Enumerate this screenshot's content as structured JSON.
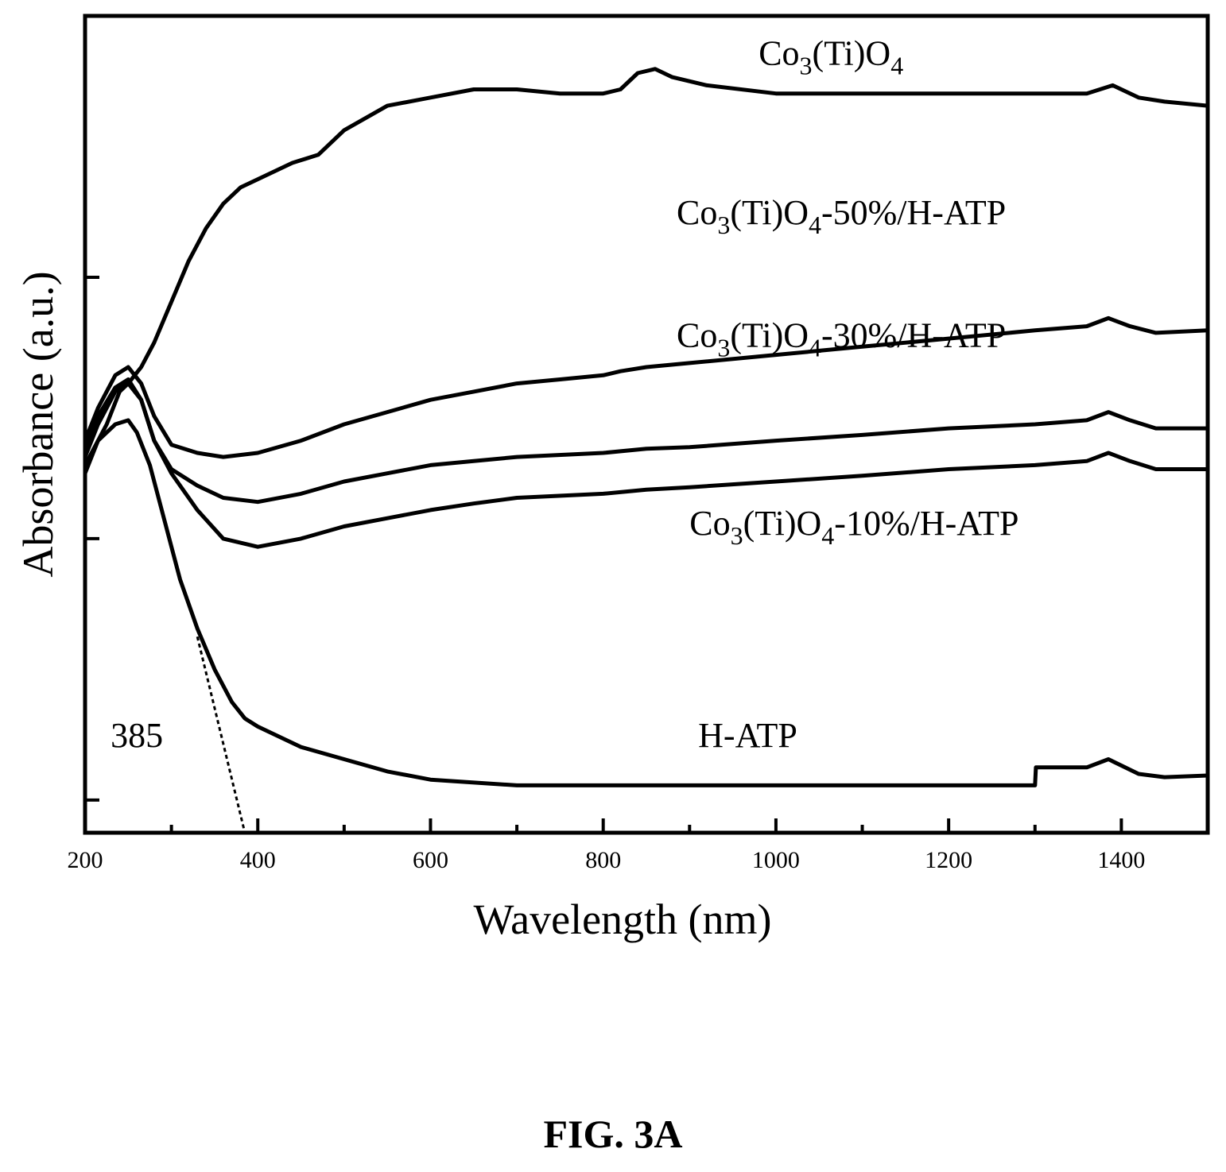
{
  "chart_data": {
    "type": "line",
    "title": "",
    "xlabel": "Wavelength (nm)",
    "ylabel": "Absorbance (a.u.)",
    "xlim": [
      200,
      1500
    ],
    "ylim": [
      0,
      1
    ],
    "x_ticks": [
      200,
      400,
      600,
      800,
      1000,
      1200,
      1400
    ],
    "y_ticks_labeled": false,
    "grid": false,
    "legend": "labels placed next to each curve",
    "series": [
      {
        "label_parts": [
          {
            "t": "Co"
          },
          {
            "t": "3",
            "sub": true
          },
          {
            "t": "(Ti)O"
          },
          {
            "t": "4",
            "sub": true
          }
        ],
        "label_at": [
          980,
          0.94
        ],
        "points": [
          [
            200,
            0.45
          ],
          [
            210,
            0.47
          ],
          [
            225,
            0.5
          ],
          [
            240,
            0.54
          ],
          [
            250,
            0.55
          ],
          [
            265,
            0.57
          ],
          [
            280,
            0.6
          ],
          [
            300,
            0.65
          ],
          [
            320,
            0.7
          ],
          [
            340,
            0.74
          ],
          [
            360,
            0.77
          ],
          [
            380,
            0.79
          ],
          [
            400,
            0.8
          ],
          [
            440,
            0.82
          ],
          [
            470,
            0.83
          ],
          [
            500,
            0.86
          ],
          [
            550,
            0.89
          ],
          [
            600,
            0.9
          ],
          [
            650,
            0.91
          ],
          [
            700,
            0.91
          ],
          [
            750,
            0.905
          ],
          [
            800,
            0.905
          ],
          [
            820,
            0.91
          ],
          [
            840,
            0.93
          ],
          [
            860,
            0.935
          ],
          [
            880,
            0.925
          ],
          [
            920,
            0.915
          ],
          [
            1000,
            0.905
          ],
          [
            1100,
            0.905
          ],
          [
            1200,
            0.905
          ],
          [
            1300,
            0.905
          ],
          [
            1360,
            0.905
          ],
          [
            1390,
            0.915
          ],
          [
            1420,
            0.9
          ],
          [
            1450,
            0.895
          ],
          [
            1500,
            0.89
          ]
        ]
      },
      {
        "label_parts": [
          {
            "t": "Co"
          },
          {
            "t": "3",
            "sub": true
          },
          {
            "t": "(Ti)O"
          },
          {
            "t": "4",
            "sub": true
          },
          {
            "t": "-50%/H-ATP"
          }
        ],
        "label_at": [
          885,
          0.745
        ],
        "points": [
          [
            200,
            0.48
          ],
          [
            215,
            0.52
          ],
          [
            235,
            0.56
          ],
          [
            250,
            0.57
          ],
          [
            265,
            0.55
          ],
          [
            280,
            0.51
          ],
          [
            300,
            0.475
          ],
          [
            330,
            0.465
          ],
          [
            360,
            0.46
          ],
          [
            400,
            0.465
          ],
          [
            450,
            0.48
          ],
          [
            500,
            0.5
          ],
          [
            550,
            0.515
          ],
          [
            600,
            0.53
          ],
          [
            650,
            0.54
          ],
          [
            700,
            0.55
          ],
          [
            750,
            0.555
          ],
          [
            800,
            0.56
          ],
          [
            820,
            0.565
          ],
          [
            850,
            0.57
          ],
          [
            900,
            0.575
          ],
          [
            1000,
            0.585
          ],
          [
            1100,
            0.595
          ],
          [
            1200,
            0.605
          ],
          [
            1300,
            0.615
          ],
          [
            1360,
            0.62
          ],
          [
            1385,
            0.63
          ],
          [
            1410,
            0.62
          ],
          [
            1440,
            0.612
          ],
          [
            1500,
            0.615
          ]
        ]
      },
      {
        "label_parts": [
          {
            "t": "Co"
          },
          {
            "t": "3",
            "sub": true
          },
          {
            "t": "(Ti)O"
          },
          {
            "t": "4",
            "sub": true
          },
          {
            "t": "-30%/H-ATP"
          }
        ],
        "label_at": [
          885,
          0.595
        ],
        "points": [
          [
            200,
            0.46
          ],
          [
            215,
            0.5
          ],
          [
            235,
            0.54
          ],
          [
            250,
            0.55
          ],
          [
            265,
            0.53
          ],
          [
            280,
            0.48
          ],
          [
            300,
            0.445
          ],
          [
            330,
            0.425
          ],
          [
            360,
            0.41
          ],
          [
            400,
            0.405
          ],
          [
            450,
            0.415
          ],
          [
            500,
            0.43
          ],
          [
            550,
            0.44
          ],
          [
            600,
            0.45
          ],
          [
            650,
            0.455
          ],
          [
            700,
            0.46
          ],
          [
            800,
            0.465
          ],
          [
            850,
            0.47
          ],
          [
            900,
            0.472
          ],
          [
            1000,
            0.48
          ],
          [
            1100,
            0.487
          ],
          [
            1200,
            0.495
          ],
          [
            1300,
            0.5
          ],
          [
            1360,
            0.505
          ],
          [
            1385,
            0.515
          ],
          [
            1410,
            0.505
          ],
          [
            1440,
            0.495
          ],
          [
            1500,
            0.495
          ]
        ]
      },
      {
        "label_parts": [
          {
            "t": "Co"
          },
          {
            "t": "3",
            "sub": true
          },
          {
            "t": "(Ti)O"
          },
          {
            "t": "4",
            "sub": true
          },
          {
            "t": "-10%/H-ATP"
          }
        ],
        "label_at": [
          900,
          0.365
        ],
        "points": [
          [
            200,
            0.47
          ],
          [
            215,
            0.51
          ],
          [
            235,
            0.545
          ],
          [
            250,
            0.555
          ],
          [
            265,
            0.53
          ],
          [
            280,
            0.48
          ],
          [
            300,
            0.44
          ],
          [
            330,
            0.395
          ],
          [
            360,
            0.36
          ],
          [
            400,
            0.35
          ],
          [
            450,
            0.36
          ],
          [
            500,
            0.375
          ],
          [
            550,
            0.385
          ],
          [
            600,
            0.395
          ],
          [
            650,
            0.403
          ],
          [
            700,
            0.41
          ],
          [
            800,
            0.415
          ],
          [
            850,
            0.42
          ],
          [
            900,
            0.423
          ],
          [
            1000,
            0.43
          ],
          [
            1100,
            0.437
          ],
          [
            1200,
            0.445
          ],
          [
            1300,
            0.45
          ],
          [
            1360,
            0.455
          ],
          [
            1385,
            0.465
          ],
          [
            1410,
            0.455
          ],
          [
            1440,
            0.445
          ],
          [
            1500,
            0.445
          ]
        ]
      },
      {
        "label_parts": [
          {
            "t": "H-ATP"
          }
        ],
        "label_at": [
          910,
          0.105
        ],
        "points": [
          [
            200,
            0.44
          ],
          [
            215,
            0.48
          ],
          [
            235,
            0.5
          ],
          [
            250,
            0.505
          ],
          [
            260,
            0.49
          ],
          [
            275,
            0.45
          ],
          [
            290,
            0.39
          ],
          [
            310,
            0.31
          ],
          [
            330,
            0.25
          ],
          [
            350,
            0.2
          ],
          [
            370,
            0.16
          ],
          [
            385,
            0.14
          ],
          [
            400,
            0.13
          ],
          [
            450,
            0.105
          ],
          [
            500,
            0.09
          ],
          [
            550,
            0.075
          ],
          [
            600,
            0.065
          ],
          [
            700,
            0.058
          ],
          [
            800,
            0.058
          ],
          [
            1000,
            0.058
          ],
          [
            1200,
            0.058
          ],
          [
            1300,
            0.058
          ],
          [
            1301,
            0.08
          ],
          [
            1360,
            0.08
          ],
          [
            1385,
            0.09
          ],
          [
            1420,
            0.072
          ],
          [
            1450,
            0.068
          ],
          [
            1500,
            0.07
          ]
        ]
      }
    ],
    "annotations": [
      {
        "text": "385",
        "style": "dashed tangent line",
        "line": [
          [
            330,
            0.24
          ],
          [
            385,
            0.0
          ]
        ],
        "label_at": [
          260,
          0.105
        ]
      }
    ]
  },
  "figure_label": "FIG. 3A"
}
